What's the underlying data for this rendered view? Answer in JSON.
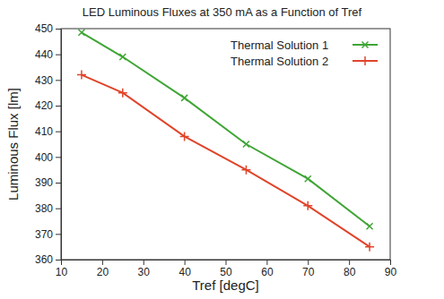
{
  "chart_data": {
    "type": "line",
    "title": "LED Luminous Fluxes at 350 mA as a Function of Tref",
    "x_label": "Tref [degC]",
    "y_label": "Luminous Flux [lm]",
    "x": [
      15,
      25,
      40,
      55,
      70,
      85
    ],
    "series": [
      {
        "name": "Thermal Solution 1",
        "color": "#3fa535",
        "marker": "x",
        "values": [
          448.5,
          439,
          423,
          405,
          391.5,
          373
        ]
      },
      {
        "name": "Thermal Solution 2",
        "color": "#e0442a",
        "marker": "plus",
        "values": [
          432,
          425,
          408,
          395,
          381,
          365
        ]
      }
    ],
    "xlim": [
      10,
      90
    ],
    "xticks": [
      10,
      20,
      30,
      40,
      50,
      60,
      70,
      80,
      90
    ],
    "ylim": [
      360,
      450
    ],
    "yticks": [
      360,
      370,
      380,
      390,
      400,
      410,
      420,
      430,
      440,
      450
    ],
    "grid": false,
    "legend": "upper right"
  }
}
